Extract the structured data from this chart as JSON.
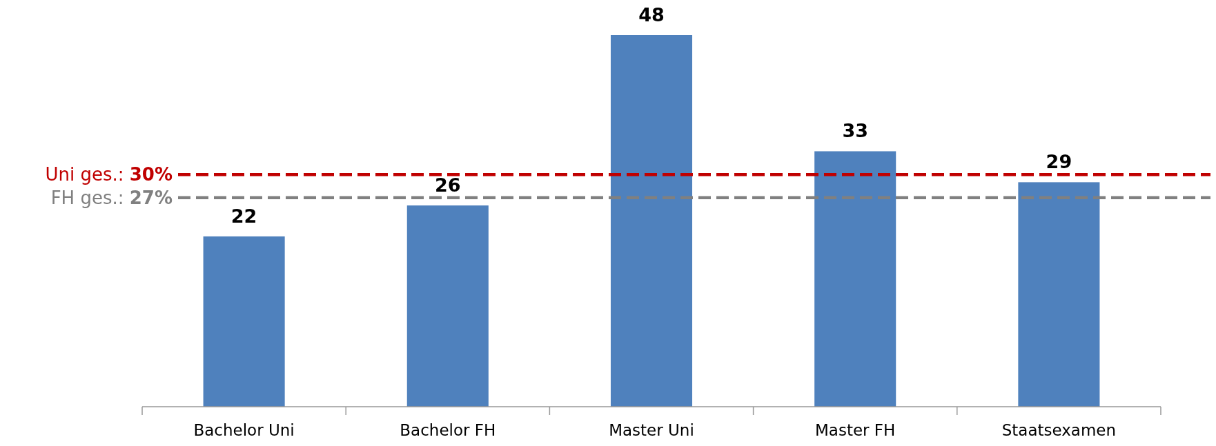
{
  "chart_data": {
    "type": "bar",
    "categories": [
      "Bachelor Uni",
      "Bachelor FH",
      "Master Uni",
      "Master FH",
      "Staatsexamen"
    ],
    "values": [
      22,
      26,
      48,
      33,
      29
    ],
    "color": "#4f81bd",
    "data_labels": true,
    "ref_lines": [
      {
        "axis": "y",
        "value": 30,
        "label": "Uni ges.: 30%",
        "color": "#c00000",
        "line_style": "dashed"
      },
      {
        "axis": "y",
        "value": 27,
        "label": "FH ges.: 27%",
        "color": "#808080",
        "line_style": "dashed"
      }
    ]
  }
}
